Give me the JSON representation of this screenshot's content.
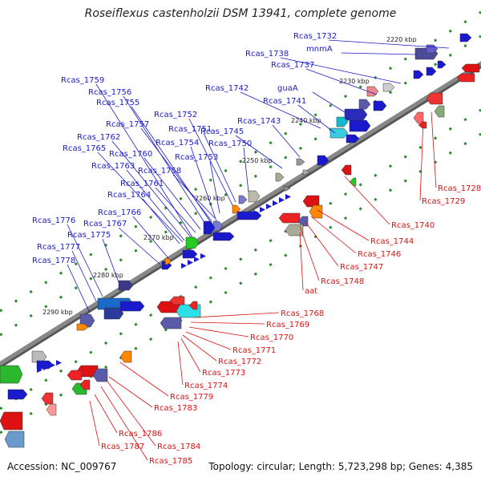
{
  "title": "Roseiflexus castenholzii DSM 13941, complete genome",
  "footer": {
    "accession": "Accession: NC_009767",
    "topology": "Topology: circular; Length: 5,723,298 bp; Genes: 4,385"
  },
  "colors": {
    "backbone": "#888888",
    "forward_label": "#1a1acc",
    "reverse_label": "#dd1111",
    "tick_green": "#2a8a2a"
  },
  "ticks": [
    "2220 kbp",
    "2230 kbp",
    "2240 kbp",
    "2250 kbp",
    "2260 kbp",
    "2270 kbp",
    "2280 kbp",
    "2290 kbp"
  ],
  "forward_genes": [
    "Rcas_1732",
    "mnmA",
    "Rcas_1738",
    "Rcas_1737",
    "guaA",
    "Rcas_1742",
    "Rcas_1741",
    "Rcas_1743",
    "Rcas_1745",
    "Rcas_1750",
    "Rcas_1751",
    "Rcas_1752",
    "Rcas_1753",
    "Rcas_1754",
    "Rcas_1755",
    "Rcas_1756",
    "Rcas_1757",
    "Rcas_1758",
    "Rcas_1759",
    "Rcas_1760",
    "Rcas_1761",
    "Rcas_1762",
    "Rcas_1763",
    "Rcas_1764",
    "Rcas_1765",
    "Rcas_1766",
    "Rcas_1767",
    "Rcas_1775",
    "Rcas_1776",
    "Rcas_1777",
    "Rcas_1778"
  ],
  "reverse_genes": [
    "Rcas_1728",
    "Rcas_1729",
    "Rcas_1740",
    "Rcas_1744",
    "Rcas_1746",
    "Rcas_1747",
    "Rcas_1748",
    "aat",
    "Rcas_1768",
    "Rcas_1769",
    "Rcas_1770",
    "Rcas_1771",
    "Rcas_1772",
    "Rcas_1773",
    "Rcas_1774",
    "Rcas_1779",
    "Rcas_1783",
    "Rcas_1784",
    "Rcas_1785",
    "Rcas_1786",
    "Rcas_1787"
  ]
}
